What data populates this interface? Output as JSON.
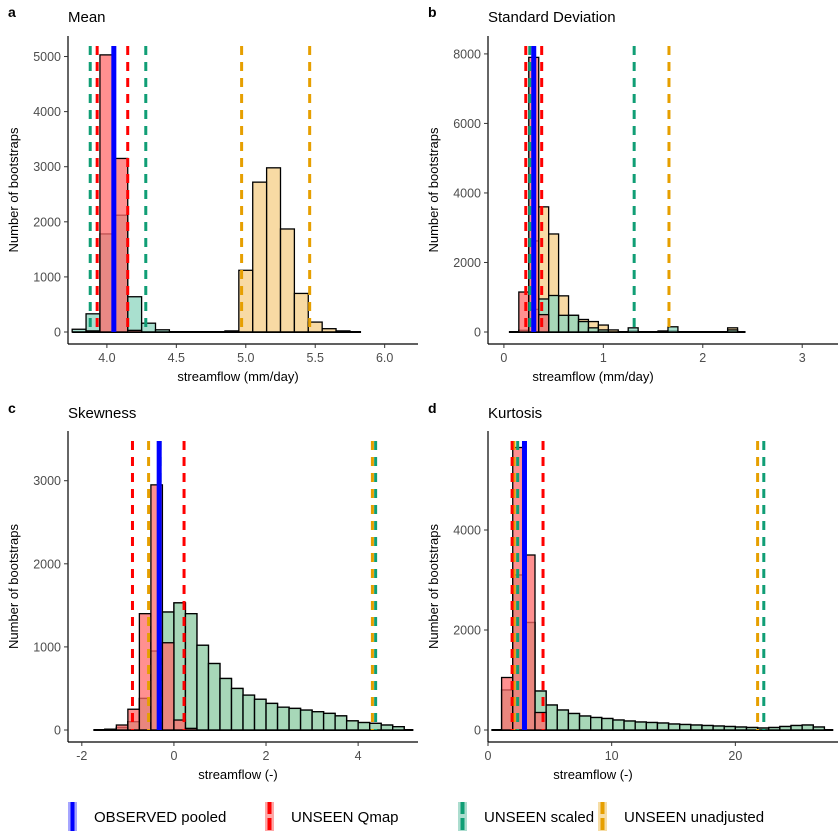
{
  "colors": {
    "observed": "#0000ff",
    "qmap": "#ff0000",
    "scaled": "#109e75",
    "unadjusted": "#e69f00",
    "qmap_fill": "#ff6b6b",
    "scaled_fill": "#8cd6bf",
    "unadjusted_fill": "#f5cd85"
  },
  "legend": [
    {
      "key": "observed",
      "label": "OBSERVED pooled"
    },
    {
      "key": "qmap",
      "label": "UNSEEN Qmap"
    },
    {
      "key": "scaled",
      "label": "UNSEEN scaled"
    },
    {
      "key": "unadjusted",
      "label": "UNSEEN unadjusted"
    }
  ],
  "chart_data": [
    {
      "panel": "a",
      "title": "Mean",
      "type": "histogram",
      "xlabel": "streamflow (mm/day)",
      "ylabel": "Number of bootstraps",
      "xlim": [
        3.72,
        6.24
      ],
      "ylim": [
        0,
        5300
      ],
      "xticks": [
        4.0,
        4.5,
        5.0,
        5.5,
        6.0
      ],
      "xtick_labels": [
        "4.0",
        "4.5",
        "5.0",
        "5.5",
        "6.0"
      ],
      "yticks": [
        0,
        1000,
        2000,
        3000,
        4000,
        5000
      ],
      "ytick_labels": [
        "0",
        "1000",
        "2000",
        "3000",
        "4000",
        "5000"
      ],
      "bin_width": 0.1,
      "series": [
        {
          "name": "UNSEEN unadjusted",
          "key": "unadjusted",
          "bins": [
            {
              "x": 4.9,
              "y": 20
            },
            {
              "x": 5.0,
              "y": 1120
            },
            {
              "x": 5.1,
              "y": 2720
            },
            {
              "x": 5.2,
              "y": 2980
            },
            {
              "x": 5.3,
              "y": 1870
            },
            {
              "x": 5.4,
              "y": 700
            },
            {
              "x": 5.5,
              "y": 180
            },
            {
              "x": 5.6,
              "y": 60
            },
            {
              "x": 5.7,
              "y": 20
            }
          ]
        },
        {
          "name": "UNSEEN scaled",
          "key": "scaled",
          "bins": [
            {
              "x": 3.8,
              "y": 50
            },
            {
              "x": 3.9,
              "y": 330
            },
            {
              "x": 4.0,
              "y": 1780
            },
            {
              "x": 4.1,
              "y": 2120
            },
            {
              "x": 4.2,
              "y": 640
            },
            {
              "x": 4.3,
              "y": 160
            },
            {
              "x": 4.4,
              "y": 40
            }
          ]
        },
        {
          "name": "UNSEEN Qmap",
          "key": "qmap",
          "bins": [
            {
              "x": 3.9,
              "y": 20
            },
            {
              "x": 4.0,
              "y": 5030
            },
            {
              "x": 4.1,
              "y": 3150
            },
            {
              "x": 4.2,
              "y": 30
            }
          ]
        }
      ],
      "observed": 4.05,
      "qmap_lines": [
        3.93,
        4.15
      ],
      "scaled_lines": [
        3.88,
        4.28
      ],
      "unadjusted_lines": [
        4.97,
        5.46
      ]
    },
    {
      "panel": "b",
      "title": "Standard Deviation",
      "type": "histogram",
      "xlabel": "streamflow (mm/day)",
      "ylabel": "Number of bootstraps",
      "xlim": [
        -0.16,
        3.36
      ],
      "ylim": [
        0,
        8400
      ],
      "xticks": [
        0,
        1,
        2,
        3
      ],
      "xtick_labels": [
        "0",
        "1",
        "2",
        "3"
      ],
      "yticks": [
        0,
        2000,
        4000,
        6000,
        8000
      ],
      "ytick_labels": [
        "0",
        "2000",
        "4000",
        "6000",
        "8000"
      ],
      "bin_width": 0.1,
      "series": [
        {
          "name": "UNSEEN unadjusted",
          "key": "unadjusted",
          "bins": [
            {
              "x": 0.2,
              "y": 50
            },
            {
              "x": 0.3,
              "y": 2620
            },
            {
              "x": 0.4,
              "y": 3600
            },
            {
              "x": 0.5,
              "y": 2820
            },
            {
              "x": 0.6,
              "y": 1040
            },
            {
              "x": 0.7,
              "y": 480
            },
            {
              "x": 0.8,
              "y": 360
            },
            {
              "x": 0.9,
              "y": 300
            },
            {
              "x": 1.0,
              "y": 200
            },
            {
              "x": 1.1,
              "y": 60
            },
            {
              "x": 1.3,
              "y": 30
            },
            {
              "x": 1.6,
              "y": 30
            },
            {
              "x": 1.7,
              "y": 30
            },
            {
              "x": 2.3,
              "y": 120
            }
          ]
        },
        {
          "name": "UNSEEN scaled",
          "key": "scaled",
          "bins": [
            {
              "x": 0.3,
              "y": 650
            },
            {
              "x": 0.4,
              "y": 950
            },
            {
              "x": 0.5,
              "y": 1050
            },
            {
              "x": 0.6,
              "y": 480
            },
            {
              "x": 0.7,
              "y": 480
            },
            {
              "x": 0.8,
              "y": 300
            },
            {
              "x": 0.9,
              "y": 120
            },
            {
              "x": 1.0,
              "y": 60
            },
            {
              "x": 1.3,
              "y": 120
            },
            {
              "x": 1.7,
              "y": 150
            },
            {
              "x": 2.3,
              "y": 60
            }
          ]
        },
        {
          "name": "UNSEEN Qmap",
          "key": "qmap",
          "bins": [
            {
              "x": 0.2,
              "y": 1150
            },
            {
              "x": 0.3,
              "y": 7900
            },
            {
              "x": 0.4,
              "y": 500
            }
          ]
        }
      ],
      "observed": 0.3,
      "qmap_lines": [
        0.22,
        0.38
      ],
      "scaled_lines": [
        0.26,
        1.31
      ],
      "unadjusted_lines": [
        0.3,
        1.66
      ]
    },
    {
      "panel": "c",
      "title": "Skewness",
      "type": "histogram",
      "xlabel": "streamflow (-)",
      "ylabel": "Number of bootstraps",
      "xlim": [
        -2.3,
        5.3
      ],
      "ylim": [
        0,
        3550
      ],
      "xticks": [
        -2,
        0,
        2,
        4
      ],
      "xtick_labels": [
        "-2",
        "0",
        "2",
        "4"
      ],
      "yticks": [
        0,
        1000,
        2000,
        3000
      ],
      "ytick_labels": [
        "0",
        "1000",
        "2000",
        "3000"
      ],
      "bin_width": 0.25,
      "series": [
        {
          "name": "UNSEEN unadjusted",
          "key": "unadjusted",
          "bins": [
            {
              "x": -1.375,
              "y": 10
            },
            {
              "x": -1.125,
              "y": 30
            },
            {
              "x": -0.875,
              "y": 100
            },
            {
              "x": -0.625,
              "y": 380
            },
            {
              "x": -0.375,
              "y": 950
            },
            {
              "x": -0.125,
              "y": 1420
            },
            {
              "x": 0.125,
              "y": 1530
            },
            {
              "x": 0.375,
              "y": 1400
            },
            {
              "x": 0.625,
              "y": 1020
            },
            {
              "x": 0.875,
              "y": 800
            },
            {
              "x": 1.125,
              "y": 620
            },
            {
              "x": 1.375,
              "y": 500
            },
            {
              "x": 1.625,
              "y": 420
            },
            {
              "x": 1.875,
              "y": 370
            },
            {
              "x": 2.125,
              "y": 320
            },
            {
              "x": 2.375,
              "y": 275
            },
            {
              "x": 2.625,
              "y": 260
            },
            {
              "x": 2.875,
              "y": 240
            },
            {
              "x": 3.125,
              "y": 220
            },
            {
              "x": 3.375,
              "y": 200
            },
            {
              "x": 3.625,
              "y": 170
            },
            {
              "x": 3.875,
              "y": 110
            },
            {
              "x": 4.125,
              "y": 90
            },
            {
              "x": 4.375,
              "y": 80
            },
            {
              "x": 4.625,
              "y": 60
            },
            {
              "x": 4.875,
              "y": 40
            }
          ]
        },
        {
          "name": "UNSEEN scaled",
          "key": "scaled",
          "bins": [
            {
              "x": -1.375,
              "y": 10
            },
            {
              "x": -1.125,
              "y": 30
            },
            {
              "x": -0.875,
              "y": 100
            },
            {
              "x": -0.625,
              "y": 380
            },
            {
              "x": -0.375,
              "y": 950
            },
            {
              "x": -0.125,
              "y": 1420
            },
            {
              "x": 0.125,
              "y": 1530
            },
            {
              "x": 0.375,
              "y": 1400
            },
            {
              "x": 0.625,
              "y": 1020
            },
            {
              "x": 0.875,
              "y": 800
            },
            {
              "x": 1.125,
              "y": 620
            },
            {
              "x": 1.375,
              "y": 500
            },
            {
              "x": 1.625,
              "y": 420
            },
            {
              "x": 1.875,
              "y": 370
            },
            {
              "x": 2.125,
              "y": 320
            },
            {
              "x": 2.375,
              "y": 275
            },
            {
              "x": 2.625,
              "y": 260
            },
            {
              "x": 2.875,
              "y": 240
            },
            {
              "x": 3.125,
              "y": 220
            },
            {
              "x": 3.375,
              "y": 200
            },
            {
              "x": 3.625,
              "y": 170
            },
            {
              "x": 3.875,
              "y": 110
            },
            {
              "x": 4.125,
              "y": 90
            },
            {
              "x": 4.375,
              "y": 80
            },
            {
              "x": 4.625,
              "y": 60
            },
            {
              "x": 4.875,
              "y": 40
            }
          ]
        },
        {
          "name": "UNSEEN Qmap",
          "key": "qmap",
          "bins": [
            {
              "x": -1.125,
              "y": 60
            },
            {
              "x": -0.875,
              "y": 250
            },
            {
              "x": -0.625,
              "y": 1400
            },
            {
              "x": -0.375,
              "y": 2950
            },
            {
              "x": -0.125,
              "y": 1050
            },
            {
              "x": 0.125,
              "y": 120
            },
            {
              "x": 0.375,
              "y": 20
            }
          ]
        }
      ],
      "observed": -0.32,
      "qmap_lines": [
        -0.9,
        0.22
      ],
      "scaled_lines": [
        -0.3,
        4.38
      ],
      "unadjusted_lines": [
        -0.55,
        4.31
      ]
    },
    {
      "panel": "d",
      "title": "Kurtosis",
      "type": "histogram",
      "xlabel": "streamflow (-)",
      "ylabel": "Number of bootstraps",
      "xlim": [
        0,
        28.3
      ],
      "ylim": [
        0,
        5900
      ],
      "xticks": [
        0,
        10,
        20
      ],
      "xtick_labels": [
        "0",
        "10",
        "20"
      ],
      "yticks": [
        0,
        2000,
        4000
      ],
      "ytick_labels": [
        "0",
        "2000",
        "4000"
      ],
      "bin_width": 0.9,
      "series": [
        {
          "name": "UNSEEN unadjusted",
          "key": "unadjusted",
          "bins": [
            {
              "x": 1.55,
              "y": 800
            },
            {
              "x": 2.45,
              "y": 3100
            },
            {
              "x": 3.35,
              "y": 2150
            },
            {
              "x": 4.25,
              "y": 780
            },
            {
              "x": 5.15,
              "y": 500
            },
            {
              "x": 6.05,
              "y": 400
            },
            {
              "x": 6.95,
              "y": 330
            },
            {
              "x": 7.85,
              "y": 280
            },
            {
              "x": 8.75,
              "y": 250
            },
            {
              "x": 9.65,
              "y": 230
            },
            {
              "x": 10.55,
              "y": 200
            },
            {
              "x": 11.45,
              "y": 180
            },
            {
              "x": 12.35,
              "y": 160
            },
            {
              "x": 13.25,
              "y": 150
            },
            {
              "x": 14.15,
              "y": 140
            },
            {
              "x": 15.05,
              "y": 120
            },
            {
              "x": 15.95,
              "y": 110
            },
            {
              "x": 16.85,
              "y": 100
            },
            {
              "x": 17.75,
              "y": 90
            },
            {
              "x": 18.65,
              "y": 80
            },
            {
              "x": 19.55,
              "y": 70
            },
            {
              "x": 20.45,
              "y": 60
            },
            {
              "x": 21.35,
              "y": 50
            },
            {
              "x": 22.25,
              "y": 40
            },
            {
              "x": 23.15,
              "y": 50
            },
            {
              "x": 24.05,
              "y": 70
            },
            {
              "x": 24.95,
              "y": 90
            },
            {
              "x": 25.85,
              "y": 100
            },
            {
              "x": 26.75,
              "y": 60
            }
          ]
        },
        {
          "name": "UNSEEN scaled",
          "key": "scaled",
          "bins": [
            {
              "x": 1.55,
              "y": 800
            },
            {
              "x": 2.45,
              "y": 3100
            },
            {
              "x": 3.35,
              "y": 2150
            },
            {
              "x": 4.25,
              "y": 780
            },
            {
              "x": 5.15,
              "y": 500
            },
            {
              "x": 6.05,
              "y": 400
            },
            {
              "x": 6.95,
              "y": 330
            },
            {
              "x": 7.85,
              "y": 280
            },
            {
              "x": 8.75,
              "y": 250
            },
            {
              "x": 9.65,
              "y": 230
            },
            {
              "x": 10.55,
              "y": 200
            },
            {
              "x": 11.45,
              "y": 180
            },
            {
              "x": 12.35,
              "y": 160
            },
            {
              "x": 13.25,
              "y": 150
            },
            {
              "x": 14.15,
              "y": 140
            },
            {
              "x": 15.05,
              "y": 120
            },
            {
              "x": 15.95,
              "y": 110
            },
            {
              "x": 16.85,
              "y": 100
            },
            {
              "x": 17.75,
              "y": 90
            },
            {
              "x": 18.65,
              "y": 80
            },
            {
              "x": 19.55,
              "y": 70
            },
            {
              "x": 20.45,
              "y": 60
            },
            {
              "x": 21.35,
              "y": 50
            },
            {
              "x": 22.25,
              "y": 40
            },
            {
              "x": 23.15,
              "y": 50
            },
            {
              "x": 24.05,
              "y": 70
            },
            {
              "x": 24.95,
              "y": 90
            },
            {
              "x": 25.85,
              "y": 100
            },
            {
              "x": 26.75,
              "y": 60
            }
          ]
        },
        {
          "name": "UNSEEN Qmap",
          "key": "qmap",
          "bins": [
            {
              "x": 1.55,
              "y": 1050
            },
            {
              "x": 2.45,
              "y": 5650
            },
            {
              "x": 3.35,
              "y": 3500
            },
            {
              "x": 4.25,
              "y": 350
            }
          ]
        }
      ],
      "observed": 2.95,
      "qmap_lines": [
        1.95,
        4.45
      ],
      "scaled_lines": [
        2.4,
        22.3
      ],
      "unadjusted_lines": [
        2.1,
        21.8
      ]
    }
  ]
}
